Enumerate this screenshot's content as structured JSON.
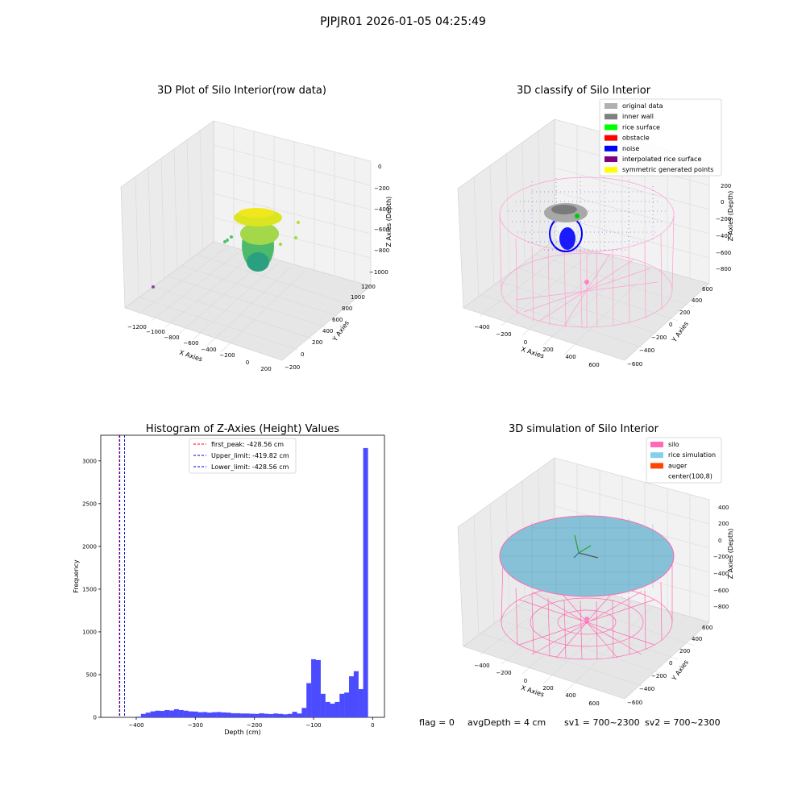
{
  "suptitle": "PJPJR01 2026-01-05 04:25:49",
  "footer": {
    "flag": "flag = 0",
    "avg_depth": "avgDepth = 4 cm",
    "sv1": "sv1 = 700~2300",
    "sv2": "sv2 = 700~2300"
  },
  "chart_data": [
    {
      "type": "scatter",
      "projection": "3d",
      "title": "3D Plot of Silo Interior(row data)",
      "xlabel": "X Axies",
      "ylabel": "Y Axies",
      "zlabel": "Z Axies (Depth)",
      "x_ticks": [
        "−1200",
        "−1000",
        "−800",
        "−600",
        "−400",
        "−200",
        "0",
        "200"
      ],
      "y_ticks": [
        "−200",
        "0",
        "200",
        "400",
        "600",
        "800",
        "1000",
        "1200"
      ],
      "z_ticks": [
        "0",
        "−200",
        "−400",
        "−600",
        "−800",
        "−1000"
      ],
      "grid": true,
      "colormap": "viridis",
      "description_of_points": "dense column of points near x≈-100, y≈500 spanning depth −1000 to −400; one outlier near x≈-1300"
    },
    {
      "type": "scatter",
      "projection": "3d",
      "title": "3D classify of Silo Interior",
      "xlabel": "X Axies",
      "ylabel": "Y Axies",
      "zlabel": "Z Axies (Depth)",
      "x_ticks": [
        "−400",
        "−200",
        "0",
        "200",
        "400",
        "600"
      ],
      "y_ticks": [
        "−600",
        "−400",
        "−200",
        "0",
        "200",
        "400",
        "600"
      ],
      "z_ticks": [
        "200",
        "0",
        "−200",
        "−400",
        "−600",
        "−800"
      ],
      "grid": true,
      "legend_position": "top-right",
      "legend": [
        {
          "label": "original data",
          "color": "#b0b0b0"
        },
        {
          "label": "inner wall",
          "color": "#808080"
        },
        {
          "label": "rice surface",
          "color": "#00ff00"
        },
        {
          "label": "obstacle",
          "color": "#ff0000"
        },
        {
          "label": "noise",
          "color": "#0000ff"
        },
        {
          "label": "interpolated rice surface",
          "color": "#800080"
        },
        {
          "label": "symmetric generated points",
          "color": "#ffff00"
        }
      ]
    },
    {
      "type": "bar",
      "title": "Histogram of Z-Axies (Height) Values",
      "xlabel": "Depth (cm)",
      "ylabel": "Frequency",
      "xlim": [
        -460,
        20
      ],
      "ylim": [
        0,
        3300
      ],
      "x_ticks": [
        -400,
        -300,
        -200,
        -100,
        0
      ],
      "y_ticks": [
        0,
        500,
        1000,
        1500,
        2000,
        2500,
        3000
      ],
      "bar_color": "#4b4bff",
      "bin_width": 8.2,
      "bins": [
        {
          "x": -400,
          "v": 8
        },
        {
          "x": -392,
          "v": 40
        },
        {
          "x": -384,
          "v": 55
        },
        {
          "x": -376,
          "v": 70
        },
        {
          "x": -368,
          "v": 78
        },
        {
          "x": -360,
          "v": 75
        },
        {
          "x": -352,
          "v": 85
        },
        {
          "x": -344,
          "v": 80
        },
        {
          "x": -336,
          "v": 95
        },
        {
          "x": -328,
          "v": 85
        },
        {
          "x": -320,
          "v": 78
        },
        {
          "x": -312,
          "v": 70
        },
        {
          "x": -304,
          "v": 68
        },
        {
          "x": -296,
          "v": 60
        },
        {
          "x": -288,
          "v": 62
        },
        {
          "x": -280,
          "v": 55
        },
        {
          "x": -272,
          "v": 60
        },
        {
          "x": -264,
          "v": 62
        },
        {
          "x": -256,
          "v": 58
        },
        {
          "x": -248,
          "v": 55
        },
        {
          "x": -240,
          "v": 48
        },
        {
          "x": -232,
          "v": 48
        },
        {
          "x": -224,
          "v": 45
        },
        {
          "x": -216,
          "v": 45
        },
        {
          "x": -208,
          "v": 42
        },
        {
          "x": -200,
          "v": 40
        },
        {
          "x": -192,
          "v": 48
        },
        {
          "x": -184,
          "v": 42
        },
        {
          "x": -176,
          "v": 38
        },
        {
          "x": -168,
          "v": 45
        },
        {
          "x": -160,
          "v": 40
        },
        {
          "x": -152,
          "v": 35
        },
        {
          "x": -144,
          "v": 40
        },
        {
          "x": -136,
          "v": 65
        },
        {
          "x": -128,
          "v": 45
        },
        {
          "x": -120,
          "v": 110
        },
        {
          "x": -112,
          "v": 400
        },
        {
          "x": -104,
          "v": 680
        },
        {
          "x": -96,
          "v": 670
        },
        {
          "x": -88,
          "v": 275
        },
        {
          "x": -80,
          "v": 180
        },
        {
          "x": -72,
          "v": 160
        },
        {
          "x": -64,
          "v": 180
        },
        {
          "x": -56,
          "v": 275
        },
        {
          "x": -48,
          "v": 290
        },
        {
          "x": -40,
          "v": 480
        },
        {
          "x": -32,
          "v": 540
        },
        {
          "x": -24,
          "v": 330
        },
        {
          "x": -16,
          "v": 3150
        }
      ],
      "vlines": [
        {
          "label": "first_peak: -428.56 cm",
          "x": -428.56,
          "color": "#ff0000"
        },
        {
          "label": "Upper_limit: -419.82 cm",
          "x": -419.82,
          "color": "#0000cc"
        },
        {
          "label": "Lower_limit: -428.56 cm",
          "x": -428.56,
          "color": "#0000cc"
        }
      ],
      "legend_position": "top-center"
    },
    {
      "type": "scatter",
      "projection": "3d",
      "title": "3D simulation of Silo Interior",
      "xlabel": "X Axies",
      "ylabel": "Y Axies",
      "zlabel": "Z Axies (Depth)",
      "x_ticks": [
        "−400",
        "−200",
        "0",
        "200",
        "400",
        "600"
      ],
      "y_ticks": [
        "−600",
        "−400",
        "−200",
        "0",
        "200",
        "400",
        "600"
      ],
      "z_ticks": [
        "400",
        "200",
        "0",
        "−200",
        "−400",
        "−600",
        "−800"
      ],
      "grid": true,
      "legend_position": "top-right",
      "legend": [
        {
          "label": "silo",
          "color": "#ff69b4"
        },
        {
          "label": "rice simulation",
          "color": "#87ceeb"
        },
        {
          "label": "auger",
          "color": "#ff4500"
        },
        {
          "label": "center(100,8)",
          "color": ""
        }
      ]
    }
  ]
}
